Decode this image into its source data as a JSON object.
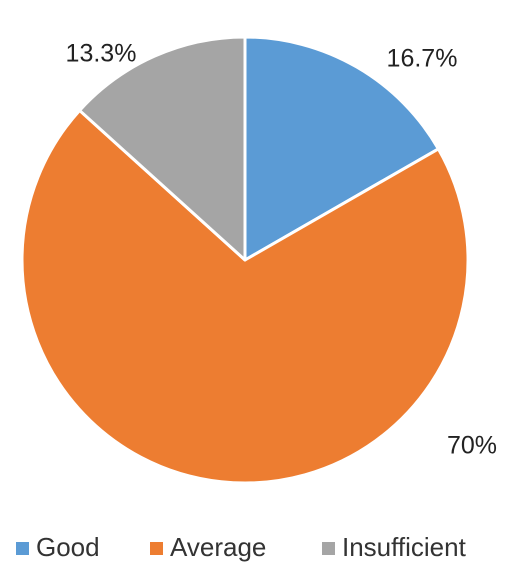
{
  "chart_data": {
    "type": "pie",
    "categories": [
      "Good",
      "Average",
      "Insufficient"
    ],
    "values": [
      16.7,
      70,
      13.3
    ],
    "data_labels": [
      "16.7%",
      "70%",
      "13.3%"
    ],
    "colors": [
      "#5b9bd5",
      "#ed7d31",
      "#a5a5a5"
    ],
    "legend_position": "bottom"
  }
}
